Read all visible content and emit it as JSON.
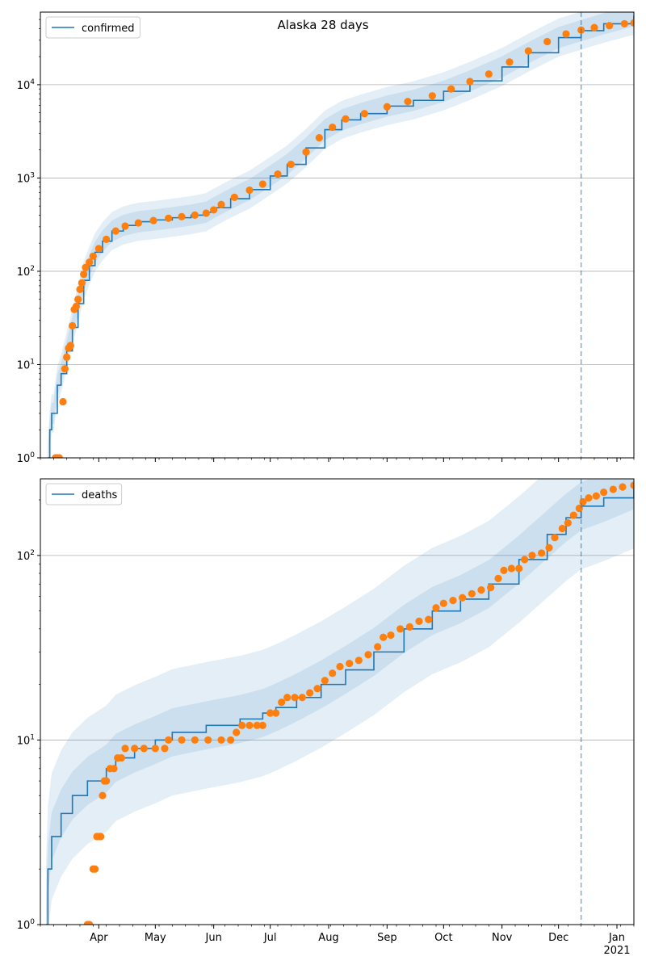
{
  "title": "Alaska 28 days",
  "chart_data": [
    {
      "type": "line",
      "y_scale": "log",
      "ylim": [
        1,
        60000
      ],
      "xlim": [
        "2020-03-01",
        "2021-01-10"
      ],
      "grid": "horizontal",
      "legend": {
        "placement": "top-left",
        "entries": [
          "confirmed"
        ]
      },
      "y_ticks": [
        {
          "value": 1,
          "base": "10",
          "exp": "0"
        },
        {
          "value": 10,
          "base": "10",
          "exp": "1"
        },
        {
          "value": 100,
          "base": "10",
          "exp": "2"
        },
        {
          "value": 1000,
          "base": "10",
          "exp": "3"
        },
        {
          "value": 10000,
          "base": "10",
          "exp": "4"
        }
      ],
      "vertical_marker_date": "2020-12-13",
      "colors": {
        "model": "#1f77b4",
        "observed": "#ff7f0e",
        "band": "#1f77b4",
        "marker": "#1f77b4"
      },
      "series": [
        {
          "name": "confirmed",
          "kind": "model",
          "points": [
            [
              "2020-03-05",
              1
            ],
            [
              "2020-03-06",
              2
            ],
            [
              "2020-03-07",
              3
            ],
            [
              "2020-03-08",
              3
            ],
            [
              "2020-03-10",
              6
            ],
            [
              "2020-03-12",
              8
            ],
            [
              "2020-03-15",
              14
            ],
            [
              "2020-03-18",
              25
            ],
            [
              "2020-03-21",
              45
            ],
            [
              "2020-03-24",
              80
            ],
            [
              "2020-03-27",
              115
            ],
            [
              "2020-03-30",
              160
            ],
            [
              "2020-04-03",
              210
            ],
            [
              "2020-04-08",
              270
            ],
            [
              "2020-04-14",
              310
            ],
            [
              "2020-04-22",
              340
            ],
            [
              "2020-05-01",
              355
            ],
            [
              "2020-05-10",
              375
            ],
            [
              "2020-05-20",
              400
            ],
            [
              "2020-05-28",
              430
            ],
            [
              "2020-06-01",
              480
            ],
            [
              "2020-06-10",
              600
            ],
            [
              "2020-06-20",
              750
            ],
            [
              "2020-07-01",
              1050
            ],
            [
              "2020-07-10",
              1400
            ],
            [
              "2020-07-20",
              2100
            ],
            [
              "2020-07-30",
              3300
            ],
            [
              "2020-08-08",
              4200
            ],
            [
              "2020-08-18",
              4900
            ],
            [
              "2020-09-01",
              5900
            ],
            [
              "2020-09-15",
              6800
            ],
            [
              "2020-10-01",
              8500
            ],
            [
              "2020-10-15",
              11000
            ],
            [
              "2020-11-01",
              15500
            ],
            [
              "2020-11-15",
              22000
            ],
            [
              "2020-12-01",
              32000
            ],
            [
              "2020-12-13",
              38000
            ],
            [
              "2020-12-25",
              45000
            ],
            [
              "2021-01-10",
              55000
            ]
          ],
          "band_factors": [
            1.3,
            1.6
          ]
        },
        {
          "name": "confirmed observed",
          "kind": "observed",
          "points": [
            [
              "2020-03-09",
              1
            ],
            [
              "2020-03-10",
              1
            ],
            [
              "2020-03-11",
              1
            ],
            [
              "2020-03-13",
              4
            ],
            [
              "2020-03-14",
              9
            ],
            [
              "2020-03-15",
              12
            ],
            [
              "2020-03-16",
              15
            ],
            [
              "2020-03-17",
              16
            ],
            [
              "2020-03-18",
              26
            ],
            [
              "2020-03-19",
              39
            ],
            [
              "2020-03-20",
              42
            ],
            [
              "2020-03-21",
              50
            ],
            [
              "2020-03-22",
              64
            ],
            [
              "2020-03-23",
              75
            ],
            [
              "2020-03-24",
              93
            ],
            [
              "2020-03-25",
              110
            ],
            [
              "2020-03-27",
              125
            ],
            [
              "2020-03-29",
              145
            ],
            [
              "2020-04-01",
              175
            ],
            [
              "2020-04-05",
              220
            ],
            [
              "2020-04-10",
              270
            ],
            [
              "2020-04-15",
              305
            ],
            [
              "2020-04-22",
              330
            ],
            [
              "2020-04-30",
              350
            ],
            [
              "2020-05-08",
              370
            ],
            [
              "2020-05-15",
              385
            ],
            [
              "2020-05-22",
              400
            ],
            [
              "2020-05-28",
              420
            ],
            [
              "2020-06-01",
              455
            ],
            [
              "2020-06-05",
              520
            ],
            [
              "2020-06-12",
              620
            ],
            [
              "2020-06-20",
              740
            ],
            [
              "2020-06-27",
              860
            ],
            [
              "2020-07-05",
              1100
            ],
            [
              "2020-07-12",
              1400
            ],
            [
              "2020-07-20",
              1900
            ],
            [
              "2020-07-27",
              2700
            ],
            [
              "2020-08-03",
              3500
            ],
            [
              "2020-08-10",
              4300
            ],
            [
              "2020-08-20",
              4900
            ],
            [
              "2020-09-01",
              5800
            ],
            [
              "2020-09-12",
              6600
            ],
            [
              "2020-09-25",
              7600
            ],
            [
              "2020-10-05",
              9000
            ],
            [
              "2020-10-15",
              10800
            ],
            [
              "2020-10-25",
              13000
            ],
            [
              "2020-11-05",
              17500
            ],
            [
              "2020-11-15",
              23000
            ],
            [
              "2020-11-25",
              29000
            ],
            [
              "2020-12-05",
              35000
            ],
            [
              "2020-12-13",
              38500
            ],
            [
              "2020-12-20",
              41000
            ],
            [
              "2020-12-28",
              43000
            ],
            [
              "2021-01-05",
              45000
            ],
            [
              "2021-01-10",
              46000
            ]
          ]
        }
      ]
    },
    {
      "type": "line",
      "y_scale": "log",
      "ylim": [
        1,
        260
      ],
      "xlim": [
        "2020-03-01",
        "2021-01-10"
      ],
      "grid": "horizontal",
      "legend": {
        "placement": "top-left",
        "entries": [
          "deaths"
        ]
      },
      "y_ticks": [
        {
          "value": 1,
          "base": "10",
          "exp": "0"
        },
        {
          "value": 10,
          "base": "10",
          "exp": "1"
        },
        {
          "value": 100,
          "base": "10",
          "exp": "2"
        }
      ],
      "x_ticks": [
        {
          "date": "2020-04-01",
          "label": "Apr"
        },
        {
          "date": "2020-05-01",
          "label": "May"
        },
        {
          "date": "2020-06-01",
          "label": "Jun"
        },
        {
          "date": "2020-07-01",
          "label": "Jul"
        },
        {
          "date": "2020-08-01",
          "label": "Aug"
        },
        {
          "date": "2020-09-01",
          "label": "Sep"
        },
        {
          "date": "2020-10-01",
          "label": "Oct"
        },
        {
          "date": "2020-11-01",
          "label": "Nov"
        },
        {
          "date": "2020-12-01",
          "label": "Dec"
        },
        {
          "date": "2021-01-01",
          "label": "Jan",
          "sublabel": "2021"
        }
      ],
      "vertical_marker_date": "2020-12-13",
      "colors": {
        "model": "#1f77b4",
        "observed": "#ff7f0e",
        "band": "#1f77b4",
        "marker": "#1f77b4"
      },
      "series": [
        {
          "name": "deaths",
          "kind": "model",
          "points": [
            [
              "2020-03-04",
              1
            ],
            [
              "2020-03-05",
              2
            ],
            [
              "2020-03-07",
              3
            ],
            [
              "2020-03-12",
              4
            ],
            [
              "2020-03-18",
              5
            ],
            [
              "2020-03-26",
              6
            ],
            [
              "2020-04-05",
              7
            ],
            [
              "2020-04-10",
              8
            ],
            [
              "2020-04-20",
              9
            ],
            [
              "2020-05-01",
              10
            ],
            [
              "2020-05-10",
              11
            ],
            [
              "2020-05-28",
              12
            ],
            [
              "2020-06-15",
              13
            ],
            [
              "2020-06-27",
              14
            ],
            [
              "2020-07-04",
              15
            ],
            [
              "2020-07-15",
              17
            ],
            [
              "2020-07-28",
              20
            ],
            [
              "2020-08-10",
              24
            ],
            [
              "2020-08-25",
              30
            ],
            [
              "2020-09-10",
              40
            ],
            [
              "2020-09-25",
              50
            ],
            [
              "2020-10-10",
              58
            ],
            [
              "2020-10-25",
              70
            ],
            [
              "2020-11-10",
              95
            ],
            [
              "2020-11-25",
              130
            ],
            [
              "2020-12-05",
              160
            ],
            [
              "2020-12-13",
              185
            ],
            [
              "2020-12-25",
              205
            ],
            [
              "2021-01-10",
              240
            ]
          ],
          "band_factors": [
            1.35,
            2.2
          ]
        },
        {
          "name": "deaths observed",
          "kind": "observed",
          "points": [
            [
              "2020-03-26",
              1
            ],
            [
              "2020-03-27",
              1
            ],
            [
              "2020-03-29",
              2
            ],
            [
              "2020-03-30",
              2
            ],
            [
              "2020-03-31",
              3
            ],
            [
              "2020-04-01",
              3
            ],
            [
              "2020-04-02",
              3
            ],
            [
              "2020-04-03",
              5
            ],
            [
              "2020-04-04",
              6
            ],
            [
              "2020-04-05",
              6
            ],
            [
              "2020-04-07",
              7
            ],
            [
              "2020-04-09",
              7
            ],
            [
              "2020-04-11",
              8
            ],
            [
              "2020-04-13",
              8
            ],
            [
              "2020-04-15",
              9
            ],
            [
              "2020-04-20",
              9
            ],
            [
              "2020-04-25",
              9
            ],
            [
              "2020-05-01",
              9
            ],
            [
              "2020-05-06",
              9
            ],
            [
              "2020-05-08",
              10
            ],
            [
              "2020-05-15",
              10
            ],
            [
              "2020-05-22",
              10
            ],
            [
              "2020-05-29",
              10
            ],
            [
              "2020-06-05",
              10
            ],
            [
              "2020-06-10",
              10
            ],
            [
              "2020-06-13",
              11
            ],
            [
              "2020-06-16",
              12
            ],
            [
              "2020-06-20",
              12
            ],
            [
              "2020-06-24",
              12
            ],
            [
              "2020-06-27",
              12
            ],
            [
              "2020-07-01",
              14
            ],
            [
              "2020-07-04",
              14
            ],
            [
              "2020-07-07",
              16
            ],
            [
              "2020-07-10",
              17
            ],
            [
              "2020-07-14",
              17
            ],
            [
              "2020-07-18",
              17
            ],
            [
              "2020-07-22",
              18
            ],
            [
              "2020-07-26",
              19
            ],
            [
              "2020-07-30",
              21
            ],
            [
              "2020-08-03",
              23
            ],
            [
              "2020-08-07",
              25
            ],
            [
              "2020-08-12",
              26
            ],
            [
              "2020-08-17",
              27
            ],
            [
              "2020-08-22",
              29
            ],
            [
              "2020-08-27",
              32
            ],
            [
              "2020-08-30",
              36
            ],
            [
              "2020-09-03",
              37
            ],
            [
              "2020-09-08",
              40
            ],
            [
              "2020-09-13",
              41
            ],
            [
              "2020-09-18",
              44
            ],
            [
              "2020-09-23",
              45
            ],
            [
              "2020-09-27",
              52
            ],
            [
              "2020-10-01",
              55
            ],
            [
              "2020-10-06",
              57
            ],
            [
              "2020-10-11",
              59
            ],
            [
              "2020-10-16",
              62
            ],
            [
              "2020-10-21",
              65
            ],
            [
              "2020-10-26",
              67
            ],
            [
              "2020-10-30",
              75
            ],
            [
              "2020-11-02",
              83
            ],
            [
              "2020-11-06",
              85
            ],
            [
              "2020-11-10",
              85
            ],
            [
              "2020-11-13",
              95
            ],
            [
              "2020-11-17",
              100
            ],
            [
              "2020-11-22",
              103
            ],
            [
              "2020-11-26",
              110
            ],
            [
              "2020-11-29",
              125
            ],
            [
              "2020-12-03",
              140
            ],
            [
              "2020-12-06",
              150
            ],
            [
              "2020-12-09",
              165
            ],
            [
              "2020-12-12",
              180
            ],
            [
              "2020-12-14",
              195
            ],
            [
              "2020-12-17",
              205
            ],
            [
              "2020-12-21",
              210
            ],
            [
              "2020-12-25",
              220
            ],
            [
              "2020-12-30",
              228
            ],
            [
              "2021-01-04",
              235
            ],
            [
              "2021-01-10",
              240
            ]
          ]
        }
      ]
    }
  ]
}
